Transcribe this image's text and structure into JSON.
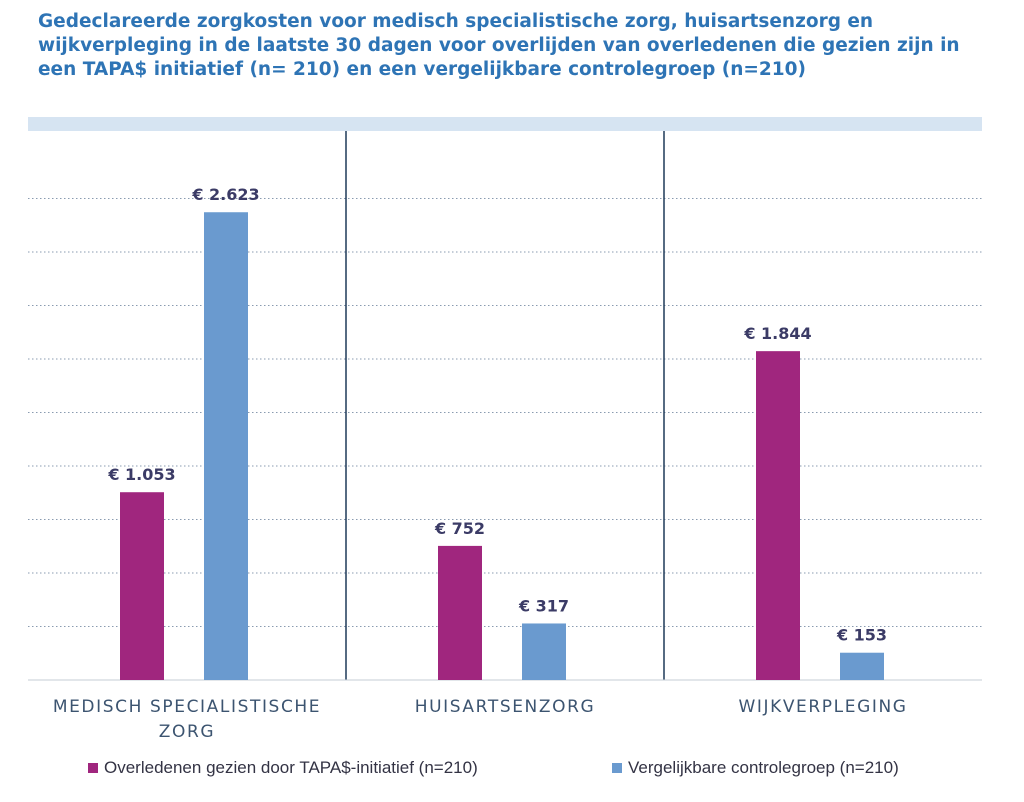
{
  "title": "Gedeclareerde zorgkosten voor medisch specialistische zorg, huisartsenzorg en wijkverpleging in de laatste 30 dagen voor overlijden van overledenen die gezien zijn in een TAPA$ initiatief (n= 210) en een vergelijkbare controlegroep (n=210)",
  "colors": {
    "series_tapas": "#a0267e",
    "series_control": "#6a9acf",
    "header_band": "#d6e4f2",
    "divider": "#1f3a58",
    "grid": "#8a9bb0"
  },
  "chart_data": {
    "type": "bar",
    "title": "Gedeclareerde zorgkosten voor medisch specialistische zorg, huisartsenzorg en wijkverpleging in de laatste 30 dagen voor overlijden van overledenen die gezien zijn in een TAPA$ initiatief (n= 210) en een vergelijkbare controlegroep (n=210)",
    "categories": [
      [
        "MEDISCH SPECIALISTISCHE",
        "ZORG"
      ],
      [
        "HUISARTSENZORG"
      ],
      [
        "WIJKVERPLEGING"
      ]
    ],
    "series": [
      {
        "name": "Overledenen gezien door TAPA$-initiatief (n=210)",
        "values": [
          1053,
          752,
          1844
        ],
        "labels": [
          "€ 1.053",
          "€ 752",
          "€ 1.844"
        ]
      },
      {
        "name": "Vergelijkbare controlegroep (n=210)",
        "values": [
          2623,
          317,
          153
        ],
        "labels": [
          "€ 2.623",
          "€ 317",
          "€ 153"
        ]
      }
    ],
    "ylim": [
      0,
      3000
    ],
    "grid": true,
    "gridlines_at": [
      300,
      600,
      900,
      1200,
      1500,
      1800,
      2100,
      2400,
      2700
    ],
    "legend_position": "bottom"
  }
}
